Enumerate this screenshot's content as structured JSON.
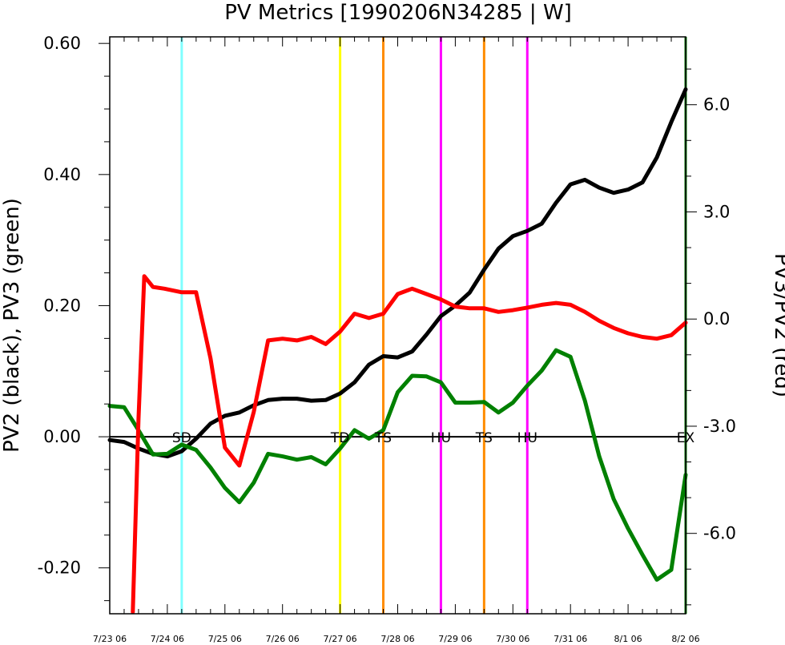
{
  "chart_data": {
    "type": "line",
    "title": "PV Metrics [1990206N34285 | W]",
    "ylabel": "PV2 (black), PV3 (green)",
    "y2label": "PV3/PV2 (red)",
    "xlim": [
      0,
      10
    ],
    "ylim": [
      -0.27,
      0.61
    ],
    "y2lim": [
      -8.25,
      7.9
    ],
    "x_ticks": [
      {
        "x": 0,
        "label": "7/23 06"
      },
      {
        "x": 1,
        "label": "7/24 06"
      },
      {
        "x": 2,
        "label": "7/25 06"
      },
      {
        "x": 3,
        "label": "7/26 06"
      },
      {
        "x": 4,
        "label": "7/27 06"
      },
      {
        "x": 5,
        "label": "7/28 06"
      },
      {
        "x": 6,
        "label": "7/29 06"
      },
      {
        "x": 7,
        "label": "7/30 06"
      },
      {
        "x": 8,
        "label": "7/31 06"
      },
      {
        "x": 9,
        "label": "8/1 06"
      },
      {
        "x": 10,
        "label": "8/2 06"
      }
    ],
    "y_ticks": [
      {
        "v": 0.6,
        "label": "0.60"
      },
      {
        "v": 0.4,
        "label": "0.40"
      },
      {
        "v": 0.2,
        "label": "0.20"
      },
      {
        "v": 0.0,
        "label": "0.00"
      },
      {
        "v": -0.2,
        "label": "-0.20"
      }
    ],
    "y2_ticks": [
      {
        "v": 6,
        "label": "6.0"
      },
      {
        "v": 3,
        "label": "3.0"
      },
      {
        "v": 0,
        "label": "0.0"
      },
      {
        "v": -3,
        "label": "-3.0"
      },
      {
        "v": -6,
        "label": "-6.0"
      }
    ],
    "events": [
      {
        "x": 1.25,
        "label": "SD",
        "color": "#80ffff"
      },
      {
        "x": 4.0,
        "label": "TD",
        "color": "#ffff00"
      },
      {
        "x": 4.75,
        "label": "TS",
        "color": "#ff8c00"
      },
      {
        "x": 5.75,
        "label": "HU",
        "color": "#ff00ff"
      },
      {
        "x": 6.5,
        "label": "TS",
        "color": "#ff8c00"
      },
      {
        "x": 7.25,
        "label": "HU",
        "color": "#ff00ff"
      },
      {
        "x": 10.0,
        "label": "EX",
        "color": "#008000"
      }
    ],
    "series": [
      {
        "color": "#000000",
        "axis": "left",
        "x": [
          0,
          0.25,
          0.5,
          0.75,
          1,
          1.25,
          1.5,
          1.75,
          2,
          2.25,
          2.5,
          2.75,
          3,
          3.25,
          3.5,
          3.75,
          4,
          4.25,
          4.5,
          4.75,
          5,
          5.25,
          5.5,
          5.75,
          6,
          6.25,
          6.5,
          6.75,
          7,
          7.25,
          7.5,
          7.75,
          8,
          8.25,
          8.5,
          8.75,
          9,
          9.25,
          9.5,
          9.75,
          10
        ],
        "values": [
          -0.005,
          -0.008,
          -0.018,
          -0.026,
          -0.03,
          -0.022,
          -0.003,
          0.02,
          0.032,
          0.037,
          0.048,
          0.056,
          0.058,
          0.058,
          0.055,
          0.056,
          0.066,
          0.083,
          0.11,
          0.123,
          0.121,
          0.13,
          0.156,
          0.184,
          0.2,
          0.22,
          0.255,
          0.287,
          0.306,
          0.314,
          0.325,
          0.357,
          0.385,
          0.392,
          0.38,
          0.372,
          0.377,
          0.388,
          0.426,
          0.48,
          0.53
        ]
      },
      {
        "color": "#008000",
        "axis": "left",
        "x": [
          0,
          0.25,
          0.5,
          0.75,
          1,
          1.25,
          1.5,
          1.75,
          2,
          2.25,
          2.5,
          2.75,
          3,
          3.25,
          3.5,
          3.75,
          4,
          4.25,
          4.5,
          4.75,
          5,
          5.25,
          5.5,
          5.75,
          6,
          6.25,
          6.5,
          6.75,
          7,
          7.25,
          7.5,
          7.75,
          8,
          8.25,
          8.5,
          8.75,
          9,
          9.25,
          9.5,
          9.75,
          10
        ],
        "values": [
          0.047,
          0.045,
          0.01,
          -0.027,
          -0.026,
          -0.012,
          -0.02,
          -0.047,
          -0.078,
          -0.1,
          -0.07,
          -0.026,
          -0.03,
          -0.035,
          -0.031,
          -0.042,
          -0.018,
          0.01,
          -0.003,
          0.01,
          0.068,
          0.093,
          0.092,
          0.083,
          0.052,
          0.052,
          0.053,
          0.037,
          0.052,
          0.078,
          0.101,
          0.132,
          0.122,
          0.055,
          -0.03,
          -0.095,
          -0.14,
          -0.18,
          -0.218,
          -0.203,
          -0.058
        ]
      },
      {
        "color": "#ff0000",
        "axis": "right",
        "x": [
          0.4,
          0.5,
          0.6,
          0.75,
          0.95,
          1.25,
          1.5,
          1.75,
          2.0,
          2.25,
          2.5,
          2.75,
          3.0,
          3.25,
          3.5,
          3.75,
          4.0,
          4.25,
          4.5,
          4.75,
          5.0,
          5.25,
          5.5,
          5.75,
          6.0,
          6.25,
          6.5,
          6.75,
          7.0,
          7.25,
          7.5,
          7.75,
          8.0,
          8.25,
          8.5,
          8.75,
          9.0,
          9.25,
          9.5,
          9.75,
          10.0
        ],
        "values": [
          -8.2,
          -2.8,
          1.2,
          0.9,
          0.85,
          0.75,
          0.75,
          -1.1,
          -3.6,
          -4.1,
          -2.6,
          -0.6,
          -0.55,
          -0.6,
          -0.5,
          -0.7,
          -0.35,
          0.15,
          0.03,
          0.15,
          0.7,
          0.85,
          0.7,
          0.55,
          0.35,
          0.3,
          0.3,
          0.2,
          0.25,
          0.32,
          0.4,
          0.45,
          0.4,
          0.2,
          -0.05,
          -0.25,
          -0.4,
          -0.5,
          -0.55,
          -0.45,
          -0.1
        ]
      }
    ]
  }
}
